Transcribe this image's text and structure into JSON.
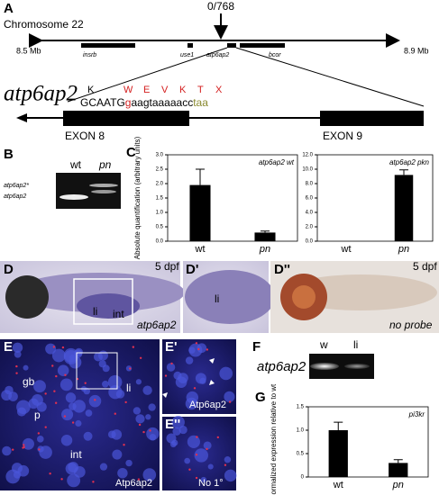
{
  "panel_labels": {
    "a": "A",
    "b": "B",
    "c": "C",
    "d": "D",
    "d1": "D'",
    "d2": "D''",
    "e": "E",
    "e1": "E'",
    "e2": "E''",
    "f": "F",
    "g": "G"
  },
  "panel_a": {
    "chromosome": "Chromosome 22",
    "recombinants": "0/768",
    "left_end": "8.5 Mb",
    "right_end": "8.9 Mb",
    "genes": [
      "insrb",
      "use1",
      "atp6ap2",
      "bcor"
    ],
    "gene_name": "atp6ap2",
    "residues": [
      "K",
      "W",
      "E",
      "V",
      "K",
      "T",
      "X"
    ],
    "sequence": [
      "GCAATG",
      "g",
      "aagtaaaaacc",
      "taa"
    ],
    "exons": [
      "EXON 8",
      "EXON 9"
    ]
  },
  "panel_b": {
    "lanes": [
      "wt",
      "pn"
    ],
    "bands": [
      "atp6ap2*",
      "atp6ap2"
    ]
  },
  "panel_d": {
    "stage": "5 dpf",
    "li": "li",
    "int": "int",
    "probe": "atp6ap2",
    "d1_li": "li",
    "d2_stage": "5 dpf",
    "d2_probe": "no probe"
  },
  "panel_e": {
    "gb": "gb",
    "li": "li",
    "p": "p",
    "int": "int",
    "stain": "Atp6ap2",
    "e1_stain": "Atp6ap2",
    "e2_control": "No 1°"
  },
  "panel_f": {
    "gene": "atp6ap2",
    "lanes": [
      "w",
      "li"
    ]
  },
  "chart_data": [
    {
      "type": "bar",
      "title": "atp6ap2 wt",
      "ylabel": "Absolute quantification (arbitrary units)",
      "categories": [
        "wt",
        "pn"
      ],
      "values": [
        1.95,
        0.3
      ],
      "errors": [
        0.55,
        0.05
      ],
      "color": "#000000",
      "ylim": [
        0,
        3
      ],
      "yticks": [
        {
          "value": 0,
          "label": "0.0"
        },
        0.5,
        {
          "value": 1,
          "label": "1.0"
        },
        1.5,
        {
          "value": 2,
          "label": "2.0"
        },
        2.5,
        {
          "value": 3,
          "label": "3.0"
        }
      ]
    },
    {
      "type": "bar",
      "title": "atp6ap2 pkn",
      "categories": [
        "wt",
        "pn"
      ],
      "values": [
        0,
        9.2
      ],
      "errors": [
        null,
        0.7
      ],
      "color": "#000000",
      "ylim": [
        0,
        12
      ],
      "yticks": [
        {
          "value": 0,
          "label": "0.0"
        },
        {
          "value": 2,
          "label": "2.0"
        },
        {
          "value": 4,
          "label": "4.0"
        },
        {
          "value": 6,
          "label": "6.0"
        },
        {
          "value": 8,
          "label": "8.0"
        },
        {
          "value": 10,
          "label": "10.0"
        },
        {
          "value": 12,
          "label": "12.0"
        }
      ]
    },
    {
      "type": "bar",
      "title": "pi3kr",
      "ylabel": "Normalized expression relative to wt",
      "categories": [
        "wt",
        "pn"
      ],
      "values": [
        1.0,
        0.3
      ],
      "errors": [
        0.17,
        0.07
      ],
      "color": "#000000",
      "ylim": [
        0,
        1.5
      ],
      "yticks": [
        0,
        0.5,
        {
          "value": 1,
          "label": "1.0"
        },
        1.5
      ]
    }
  ]
}
